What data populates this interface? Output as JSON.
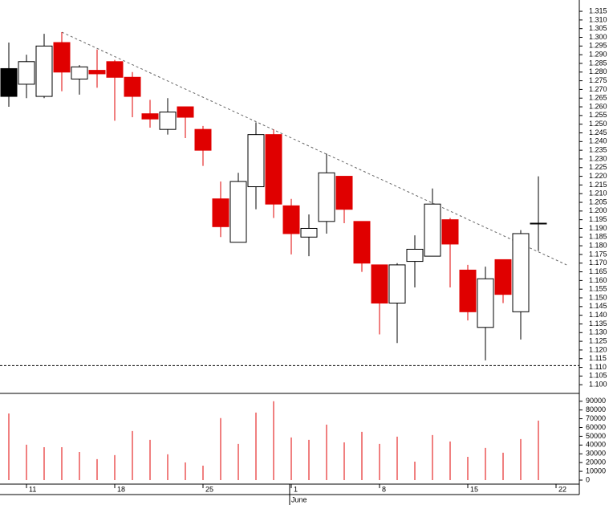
{
  "chart_data": {
    "type": "candlestick",
    "categories": [
      null,
      "11",
      null,
      null,
      null,
      null,
      "18",
      null,
      null,
      null,
      null,
      "25",
      null,
      null,
      null,
      null,
      "1",
      null,
      null,
      null,
      null,
      "8",
      null,
      null,
      null,
      null,
      "15",
      null,
      null,
      null,
      null,
      "22"
    ],
    "month_labels": [
      {
        "index": 16,
        "label": "June"
      }
    ],
    "open": [
      1.282,
      1.273,
      1.266,
      1.297,
      1.276,
      1.281,
      1.286,
      1.277,
      1.256,
      1.247,
      1.26,
      1.247,
      1.207,
      1.182,
      1.214,
      1.244,
      1.203,
      1.185,
      1.194,
      1.22,
      1.194,
      1.169,
      1.147,
      1.171,
      1.174,
      1.195,
      1.166,
      1.133,
      1.172,
      1.142,
      1.193,
      null
    ],
    "high": [
      1.297,
      1.29,
      1.302,
      1.303,
      1.284,
      1.293,
      1.287,
      1.28,
      1.264,
      1.265,
      1.26,
      1.249,
      1.217,
      1.222,
      1.251,
      1.247,
      1.207,
      1.198,
      1.233,
      1.22,
      1.194,
      1.169,
      1.17,
      1.186,
      1.213,
      1.196,
      1.169,
      1.168,
      1.172,
      1.189,
      1.22,
      null
    ],
    "low": [
      1.26,
      1.265,
      1.265,
      1.269,
      1.267,
      1.271,
      1.252,
      1.254,
      1.248,
      1.244,
      1.242,
      1.226,
      1.185,
      1.182,
      1.201,
      1.196,
      1.175,
      1.174,
      1.187,
      1.193,
      1.165,
      1.129,
      1.124,
      1.156,
      1.174,
      1.156,
      1.137,
      1.114,
      1.147,
      1.126,
      1.177,
      null
    ],
    "close": [
      1.266,
      1.286,
      1.295,
      1.28,
      1.283,
      1.279,
      1.277,
      1.266,
      1.253,
      1.257,
      1.254,
      1.235,
      1.191,
      1.217,
      1.244,
      1.204,
      1.187,
      1.19,
      1.222,
      1.201,
      1.17,
      1.147,
      1.169,
      1.178,
      1.204,
      1.181,
      1.142,
      1.161,
      1.152,
      1.187,
      1.193,
      null
    ],
    "colors": [
      "#000000",
      "#ffffff",
      "#ffffff",
      "#e00000",
      "#ffffff",
      "#e00000",
      "#e00000",
      "#e00000",
      "#e00000",
      "#ffffff",
      "#e00000",
      "#e00000",
      "#e00000",
      "#ffffff",
      "#ffffff",
      "#e00000",
      "#e00000",
      "#ffffff",
      "#ffffff",
      "#e00000",
      "#e00000",
      "#e00000",
      "#ffffff",
      "#ffffff",
      "#ffffff",
      "#e00000",
      "#e00000",
      "#ffffff",
      "#e00000",
      "#ffffff",
      "#ffffff",
      null
    ],
    "volume": [
      76000,
      40400,
      37600,
      37600,
      32100,
      23900,
      28500,
      56000,
      45900,
      29400,
      20200,
      16500,
      70700,
      41300,
      77100,
      90000,
      48700,
      45900,
      63300,
      43100,
      55100,
      41300,
      49600,
      21100,
      51400,
      44100,
      26600,
      36700,
      31200,
      46800,
      67900,
      null
    ],
    "volume_color": "#e00000",
    "ylim": [
      1.095,
      1.3215
    ],
    "yticks": [
      {
        "value": 1.1,
        "label": "1.100"
      },
      {
        "value": 1.105,
        "label": "1.105"
      },
      {
        "value": 1.11,
        "label": "1.110"
      },
      {
        "value": 1.115,
        "label": "1.115"
      },
      {
        "value": 1.12,
        "label": "1.120"
      },
      {
        "value": 1.125,
        "label": "1.125"
      },
      {
        "value": 1.13,
        "label": "1.130"
      },
      {
        "value": 1.135,
        "label": "1.135"
      },
      {
        "value": 1.14,
        "label": "1.140"
      },
      {
        "value": 1.145,
        "label": "1.145"
      },
      {
        "value": 1.15,
        "label": "1.150"
      },
      {
        "value": 1.155,
        "label": "1.155"
      },
      {
        "value": 1.16,
        "label": "1.160"
      },
      {
        "value": 1.165,
        "label": "1.165"
      },
      {
        "value": 1.17,
        "label": "1.170"
      },
      {
        "value": 1.175,
        "label": "1.175"
      },
      {
        "value": 1.18,
        "label": "1.180"
      },
      {
        "value": 1.185,
        "label": "1.185"
      },
      {
        "value": 1.19,
        "label": "1.190"
      },
      {
        "value": 1.195,
        "label": "1.195"
      },
      {
        "value": 1.2,
        "label": "1.200"
      },
      {
        "value": 1.205,
        "label": "1.205"
      },
      {
        "value": 1.21,
        "label": "1.210"
      },
      {
        "value": 1.215,
        "label": "1.215"
      },
      {
        "value": 1.22,
        "label": "1.220"
      },
      {
        "value": 1.225,
        "label": "1.225"
      },
      {
        "value": 1.23,
        "label": "1.230"
      },
      {
        "value": 1.235,
        "label": "1.235"
      },
      {
        "value": 1.24,
        "label": "1.240"
      },
      {
        "value": 1.245,
        "label": "1.245"
      },
      {
        "value": 1.25,
        "label": "1.250"
      },
      {
        "value": 1.255,
        "label": "1.255"
      },
      {
        "value": 1.26,
        "label": "1.260"
      },
      {
        "value": 1.265,
        "label": "1.265"
      },
      {
        "value": 1.27,
        "label": "1.270"
      },
      {
        "value": 1.275,
        "label": "1.275"
      },
      {
        "value": 1.28,
        "label": "1.280"
      },
      {
        "value": 1.285,
        "label": "1.285"
      },
      {
        "value": 1.29,
        "label": "1.290"
      },
      {
        "value": 1.295,
        "label": "1.295"
      },
      {
        "value": 1.3,
        "label": "1.300"
      },
      {
        "value": 1.305,
        "label": "1.305"
      },
      {
        "value": 1.31,
        "label": "1.310"
      },
      {
        "value": 1.315,
        "label": "1.315"
      }
    ],
    "volume_ylim": [
      0,
      98000
    ],
    "volume_ticks": [
      0,
      10000,
      20000,
      30000,
      40000,
      50000,
      60000,
      70000,
      80000,
      90000
    ],
    "trendline": {
      "x": [
        3,
        31.6
      ],
      "y": [
        1.303,
        1.169
      ]
    },
    "reference_line": 1.111
  }
}
